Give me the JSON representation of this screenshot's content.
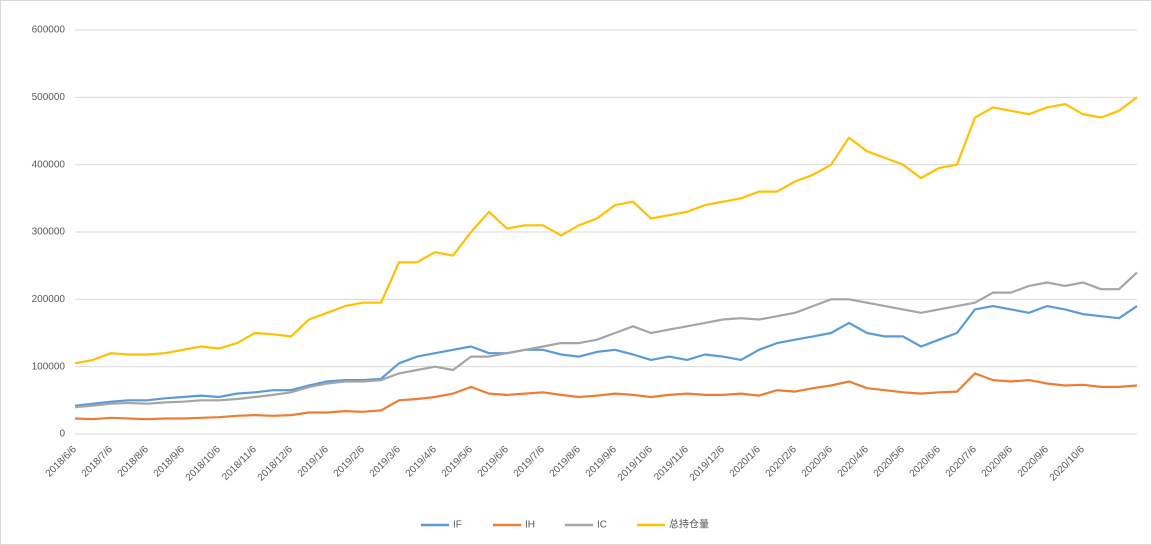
{
  "chart_data": {
    "type": "line",
    "categories": [
      "2018/6/6",
      null,
      "2018/7/6",
      null,
      "2018/8/6",
      null,
      "2018/9/6",
      null,
      "2018/10/6",
      null,
      "2018/11/6",
      null,
      "2018/12/6",
      null,
      "2019/1/6",
      null,
      "2019/2/6",
      null,
      "2019/3/6",
      null,
      "2019/4/6",
      null,
      "2019/5/6",
      null,
      "2019/6/6",
      null,
      "2019/7/6",
      null,
      "2019/8/6",
      null,
      "2019/9/6",
      null,
      "2019/10/6",
      null,
      "2019/11/6",
      null,
      "2019/12/6",
      null,
      "2020/1/6",
      null,
      "2020/2/6",
      null,
      "2020/3/6",
      null,
      "2020/4/6",
      null,
      "2020/5/6",
      null,
      "2020/6/6",
      null,
      "2020/7/6",
      null,
      "2020/8/6",
      null,
      "2020/9/6",
      null,
      "2020/10/6",
      null,
      null,
      null
    ],
    "series": [
      {
        "name": "IF",
        "color": "#5b9bd5",
        "values": [
          42000,
          45000,
          48000,
          50000,
          50000,
          53000,
          55000,
          57000,
          55000,
          60000,
          62000,
          65000,
          65000,
          72000,
          78000,
          80000,
          80000,
          82000,
          105000,
          115000,
          120000,
          125000,
          130000,
          120000,
          120000,
          125000,
          125000,
          118000,
          115000,
          122000,
          125000,
          118000,
          110000,
          115000,
          110000,
          118000,
          115000,
          110000,
          125000,
          135000,
          140000,
          145000,
          150000,
          165000,
          150000,
          145000,
          145000,
          130000,
          140000,
          150000,
          185000,
          190000,
          185000,
          180000,
          190000,
          185000,
          178000,
          175000,
          172000,
          190000
        ]
      },
      {
        "name": "IH",
        "color": "#ed7d31",
        "values": [
          23000,
          22000,
          24000,
          23000,
          22000,
          23000,
          23000,
          24000,
          25000,
          27000,
          28000,
          27000,
          28000,
          32000,
          32000,
          34000,
          33000,
          35000,
          50000,
          52000,
          55000,
          60000,
          70000,
          60000,
          58000,
          60000,
          62000,
          58000,
          55000,
          57000,
          60000,
          58000,
          55000,
          58000,
          60000,
          58000,
          58000,
          60000,
          57000,
          65000,
          63000,
          68000,
          72000,
          78000,
          68000,
          65000,
          62000,
          60000,
          62000,
          63000,
          90000,
          80000,
          78000,
          80000,
          75000,
          72000,
          73000,
          70000,
          70000,
          72000
        ]
      },
      {
        "name": "IC",
        "color": "#a5a5a5",
        "values": [
          40000,
          42000,
          45000,
          46000,
          45000,
          47000,
          48000,
          50000,
          50000,
          52000,
          55000,
          58000,
          62000,
          70000,
          75000,
          78000,
          78000,
          80000,
          90000,
          95000,
          100000,
          95000,
          115000,
          115000,
          120000,
          125000,
          130000,
          135000,
          135000,
          140000,
          150000,
          160000,
          150000,
          155000,
          160000,
          165000,
          170000,
          172000,
          170000,
          175000,
          180000,
          190000,
          200000,
          200000,
          195000,
          190000,
          185000,
          180000,
          185000,
          190000,
          195000,
          210000,
          210000,
          220000,
          225000,
          220000,
          225000,
          215000,
          215000,
          240000
        ]
      },
      {
        "name": "总持仓量",
        "color": "#ffc000",
        "values": [
          105000,
          110000,
          120000,
          118000,
          118000,
          120000,
          125000,
          130000,
          127000,
          135000,
          150000,
          148000,
          145000,
          170000,
          180000,
          190000,
          195000,
          195000,
          255000,
          255000,
          270000,
          265000,
          300000,
          330000,
          305000,
          310000,
          310000,
          295000,
          310000,
          320000,
          340000,
          345000,
          320000,
          325000,
          330000,
          340000,
          345000,
          350000,
          360000,
          360000,
          375000,
          385000,
          400000,
          440000,
          420000,
          410000,
          400000,
          380000,
          395000,
          400000,
          470000,
          485000,
          480000,
          475000,
          485000,
          490000,
          475000,
          470000,
          480000,
          500000
        ]
      }
    ],
    "ylim": [
      0,
      600000
    ],
    "yticks": [
      0,
      100000,
      200000,
      300000,
      400000,
      500000,
      600000
    ],
    "grid": true,
    "legend": "bottom"
  }
}
